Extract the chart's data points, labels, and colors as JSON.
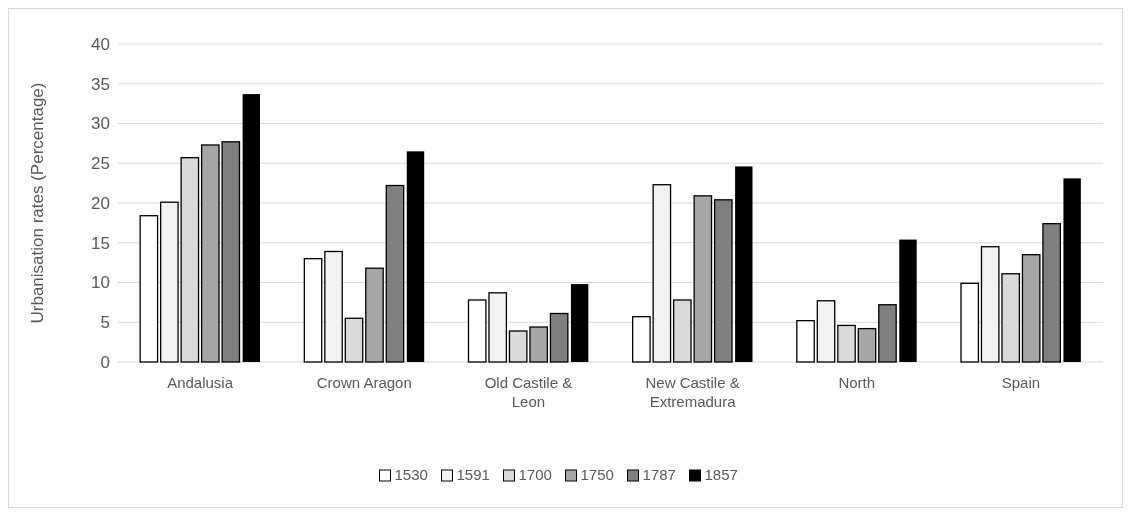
{
  "chart_data": {
    "type": "bar",
    "ylabel": "Urbanisation rates (Percentage)",
    "categories": [
      "Andalusia",
      "Crown Aragon",
      "Old Castile & Leon",
      "New Castile & Extremadura",
      "North",
      "Spain"
    ],
    "series": [
      {
        "name": "1530",
        "color": "#ffffff",
        "values": [
          18.4,
          13.0,
          7.8,
          5.7,
          5.2,
          9.9
        ]
      },
      {
        "name": "1591",
        "color": "#f2f2f2",
        "values": [
          20.1,
          13.9,
          8.7,
          22.3,
          7.7,
          14.5
        ]
      },
      {
        "name": "1700",
        "color": "#d9d9d9",
        "values": [
          25.7,
          5.5,
          3.9,
          7.8,
          4.6,
          11.1
        ]
      },
      {
        "name": "1750",
        "color": "#a6a6a6",
        "values": [
          27.3,
          11.8,
          4.4,
          20.9,
          4.2,
          13.5
        ]
      },
      {
        "name": "1787",
        "color": "#808080",
        "values": [
          27.7,
          22.2,
          6.1,
          20.4,
          7.2,
          17.4
        ]
      },
      {
        "name": "1857",
        "color": "#000000",
        "values": [
          33.7,
          26.5,
          9.8,
          24.6,
          15.4,
          23.1
        ]
      }
    ],
    "ylim": [
      0,
      40
    ],
    "yticks": [
      0,
      5,
      10,
      15,
      20,
      25,
      30,
      35,
      40
    ],
    "grid": "y",
    "legend": "bottom"
  }
}
